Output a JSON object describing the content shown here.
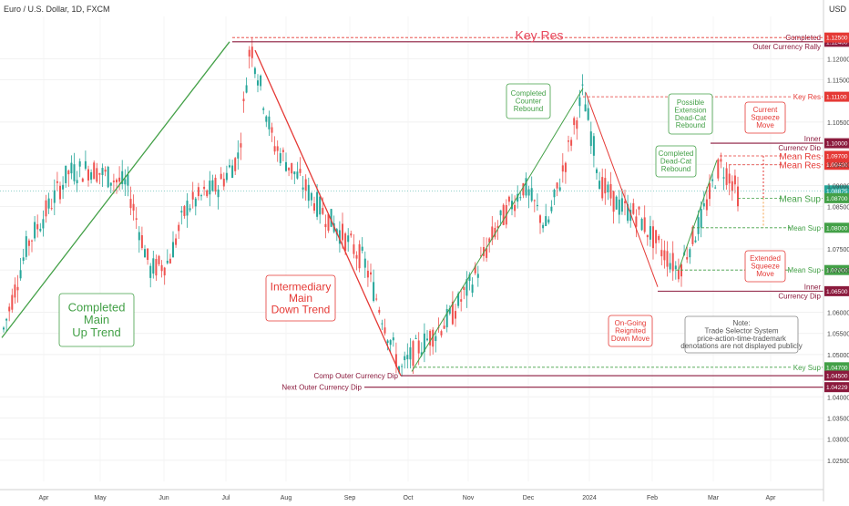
{
  "header": {
    "symbol_title": "Euro / U.S. Dollar, 1D, FXCM",
    "currency_label": "USD"
  },
  "colors": {
    "up": "#26a69a",
    "down": "#ef5350",
    "green": "#43a047",
    "red": "#e53935",
    "maroon": "#8b1a3d",
    "key_res_bg": "#e84a5f"
  },
  "chart_data": {
    "type": "candlestick",
    "x_axis": {
      "labels": [
        "Apr",
        "May",
        "Jun",
        "Jul",
        "Aug",
        "Sep",
        "Oct",
        "Nov",
        "Dec",
        "2024",
        "Feb",
        "Mar",
        "Apr"
      ]
    },
    "y_axis": {
      "range": [
        1.02,
        1.13
      ],
      "ticks": [
        1.12,
        1.115,
        1.105,
        1.095,
        1.09,
        1.085,
        1.075,
        1.07,
        1.06,
        1.055,
        1.05,
        1.04,
        1.035,
        1.03,
        1.025
      ]
    },
    "price_levels": [
      {
        "label_left": "Completed",
        "label_right": "Outer Currency Rally",
        "value": 1.124,
        "badge": "1.12400",
        "style": "solid",
        "color": "maroon"
      },
      {
        "value": 1.125,
        "badge": "1.12500",
        "style": "dashed",
        "color": "red"
      },
      {
        "label_right": "Key Res",
        "value": 1.111,
        "badge": "1.11100",
        "style": "dashed",
        "color": "red"
      },
      {
        "label_left": "Inner",
        "label_right": "Currency Dip",
        "value": 1.1,
        "badge": "1.10000",
        "style": "solid",
        "color": "maroon"
      },
      {
        "label_right": "Mean Res",
        "value": 1.097,
        "badge": "1.09700",
        "style": "dashed",
        "color": "red"
      },
      {
        "label_right": "Mean Res",
        "value": 1.0949,
        "badge": "1.09490",
        "style": "dashed",
        "color": "red"
      },
      {
        "label_right": "Mean Sup",
        "value": 1.087,
        "badge": "1.08700",
        "style": "dashed",
        "color": "green"
      },
      {
        "label_right": "Mean Sup",
        "value": 1.08,
        "badge": "1.08000",
        "style": "dashed",
        "color": "green"
      },
      {
        "label_right": "Mean Sup",
        "value": 1.07,
        "badge": "1.07000",
        "style": "dashed",
        "color": "green"
      },
      {
        "label_left": "Inner",
        "label_right": "Currency Dip",
        "value": 1.065,
        "badge": "1.06500",
        "style": "solid",
        "color": "maroon"
      },
      {
        "label_right": "Key Sup",
        "value": 1.047,
        "badge": "1.04700",
        "style": "dashed",
        "color": "green"
      },
      {
        "label_right": "Comp Outer Currency Dip",
        "value": 1.045,
        "badge": "1.04500",
        "style": "solid",
        "color": "maroon"
      },
      {
        "label_right": "Next Outer Currency Dip",
        "value": 1.04229,
        "badge": "1.04229",
        "style": "solid",
        "color": "maroon"
      }
    ],
    "current_price": {
      "value": 1.08875,
      "badge": "1.08875"
    },
    "key_res_banner": "Key Res",
    "annotations": [
      {
        "id": "completed-main-up-trend",
        "text": [
          "Completed",
          "Main",
          "Up Trend"
        ],
        "color": "green"
      },
      {
        "id": "intermediary-main-down-trend",
        "text": [
          "Intermediary",
          "Main",
          "Down Trend"
        ],
        "color": "red"
      },
      {
        "id": "completed-counter-rebound",
        "text": [
          "Completed",
          "Counter",
          "Rebound"
        ],
        "color": "green"
      },
      {
        "id": "possible-extension-rebound",
        "text": [
          "Possible",
          "Extension",
          "Dead-Cat",
          "Rebound"
        ],
        "color": "green"
      },
      {
        "id": "completed-dead-cat-rebound",
        "text": [
          "Completed",
          "Dead-Cat",
          "Rebound"
        ],
        "color": "green"
      },
      {
        "id": "current-squeeze-move",
        "text": [
          "Current",
          "Squeeze",
          "Move"
        ],
        "color": "red"
      },
      {
        "id": "extended-squeeze-move",
        "text": [
          "Extended",
          "Squeeze",
          "Move"
        ],
        "color": "red"
      },
      {
        "id": "on-going-reignited-down-move",
        "text": [
          "On-Going",
          "Reignited",
          "Down Move"
        ],
        "color": "red"
      },
      {
        "id": "note",
        "text": [
          "Note:",
          "Trade Selector System",
          "price-action-time-trademark",
          "denotations are not displayed publicly"
        ],
        "color": "gray"
      }
    ]
  }
}
